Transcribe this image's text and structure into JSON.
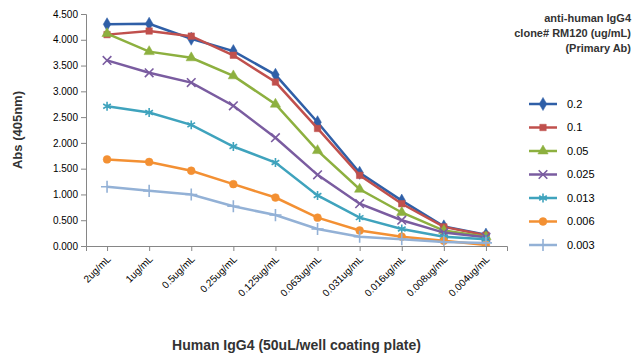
{
  "chart_data": {
    "type": "line",
    "x_label": "Human IgG4 (50uL/well coating plate)",
    "y_label": "Abs (405nm)",
    "legend_title": [
      "anti-human IgG4",
      "clone# RM120 (ug/mL)",
      "(Primary Ab)"
    ],
    "legend": "right",
    "grid": false,
    "categories": [
      "2ug/mL",
      "1ug/mL",
      "0.5ug/mL",
      "0.25ug/mL",
      "0.125ug/mL",
      "0.063ug/mL",
      "0.031ug/mL",
      "0.016ug/mL",
      "0.008ug/mL",
      "0.004ug/mL"
    ],
    "ylim": [
      0,
      4.5
    ],
    "yticks": [
      {
        "value": 0,
        "label": "0.000"
      },
      {
        "value": 0.5,
        "label": "0.500"
      },
      {
        "value": 1,
        "label": "1.000"
      },
      {
        "value": 1.5,
        "label": "1.500"
      },
      {
        "value": 2,
        "label": "2.000"
      },
      {
        "value": 2.5,
        "label": "2.500"
      },
      {
        "value": 3,
        "label": "3.000"
      },
      {
        "value": 3.5,
        "label": "3.500"
      },
      {
        "value": 4,
        "label": "4.000"
      },
      {
        "value": 4.5,
        "label": "4.500"
      }
    ],
    "series": [
      {
        "name": "0.2",
        "color": "#2f5fa7",
        "marker": "diamond",
        "values": [
          4.3,
          4.31,
          4.02,
          3.78,
          3.32,
          2.4,
          1.42,
          0.88,
          0.38,
          0.22
        ]
      },
      {
        "name": "0.1",
        "color": "#c0504d",
        "marker": "square",
        "values": [
          4.1,
          4.17,
          4.07,
          3.7,
          3.18,
          2.28,
          1.37,
          0.82,
          0.37,
          0.21
        ]
      },
      {
        "name": "0.05",
        "color": "#8db03f",
        "marker": "triangle",
        "values": [
          4.12,
          3.77,
          3.65,
          3.3,
          2.75,
          1.85,
          1.1,
          0.65,
          0.3,
          0.18
        ]
      },
      {
        "name": "0.025",
        "color": "#7a5ca0",
        "marker": "x",
        "values": [
          3.6,
          3.36,
          3.17,
          2.72,
          2.1,
          1.38,
          0.82,
          0.5,
          0.26,
          0.17
        ]
      },
      {
        "name": "0.013",
        "color": "#3fa3bd",
        "marker": "star",
        "values": [
          2.71,
          2.59,
          2.35,
          1.93,
          1.62,
          0.98,
          0.55,
          0.33,
          0.18,
          0.13
        ]
      },
      {
        "name": "0.006",
        "color": "#f39033",
        "marker": "circle",
        "values": [
          1.68,
          1.63,
          1.46,
          1.2,
          0.94,
          0.55,
          0.3,
          0.18,
          0.1,
          0.02
        ]
      },
      {
        "name": "0.003",
        "color": "#93b1d6",
        "marker": "plus",
        "values": [
          1.15,
          1.07,
          1.0,
          0.77,
          0.6,
          0.33,
          0.18,
          0.13,
          0.08,
          0.06
        ]
      }
    ]
  }
}
